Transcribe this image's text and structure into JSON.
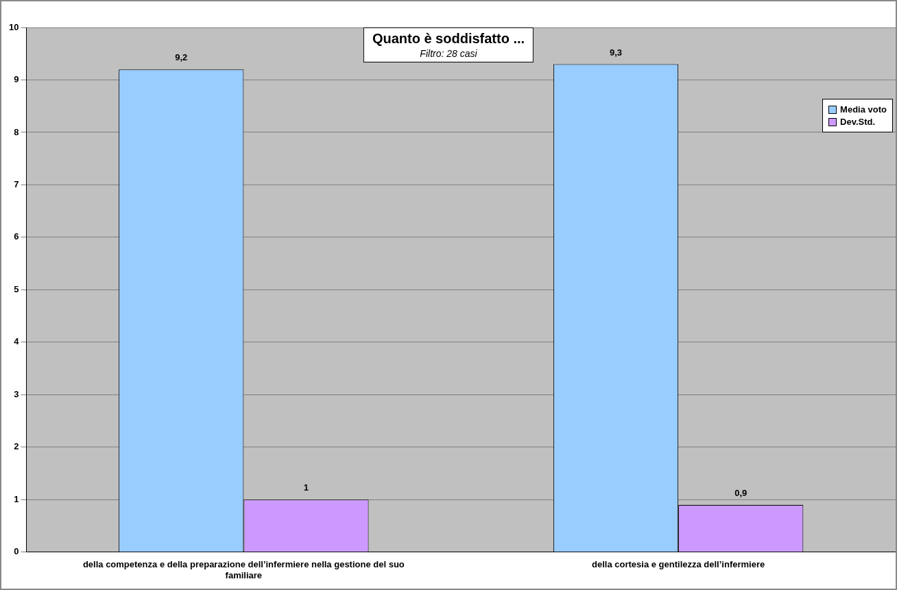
{
  "chart_data": {
    "type": "bar",
    "title": "Quanto è soddisfatto ...",
    "subtitle": "Filtro: 28 casi",
    "categories": [
      "della competenza e della preparazione dell’infermiere nella gestione del suo familiare",
      "della cortesia e gentilezza dell’infermiere"
    ],
    "series": [
      {
        "name": "Media voto",
        "color": "#99ccff",
        "values": [
          9.2,
          9.3
        ],
        "value_labels": [
          "9,2",
          "9,3"
        ]
      },
      {
        "name": "Dev.Std.",
        "color": "#cc99ff",
        "values": [
          1,
          0.9
        ],
        "value_labels": [
          "1",
          "0,9"
        ]
      }
    ],
    "ylim": [
      0,
      10
    ],
    "yticks": [
      0,
      1,
      2,
      3,
      4,
      5,
      6,
      7,
      8,
      9,
      10
    ],
    "grid": "y",
    "legend": "top right"
  }
}
